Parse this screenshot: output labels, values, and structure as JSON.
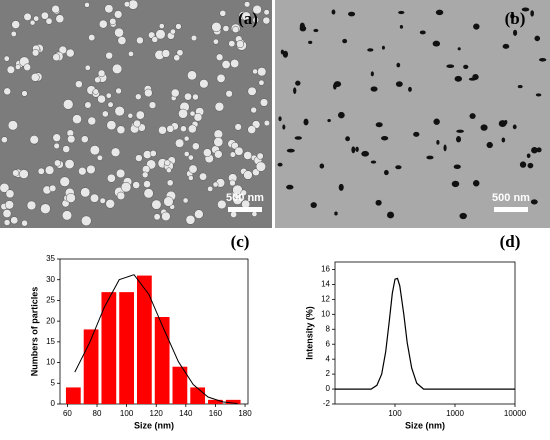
{
  "panels": [
    {
      "label": "(a)",
      "scale_bar": "500 nm"
    },
    {
      "label": "(b)",
      "scale_bar": "500 nm"
    },
    {
      "label": "(c)"
    },
    {
      "label": "(d)"
    }
  ],
  "chart_data": [
    {
      "type": "histogram",
      "x_label": "Size (nm)",
      "y_label": "Numbers of particles",
      "bins": [
        58,
        70,
        82,
        94,
        106,
        118,
        130,
        142,
        154,
        166,
        178
      ],
      "values": [
        4,
        18,
        27,
        27,
        31,
        21,
        9,
        4,
        1,
        1
      ],
      "color": "#ff0000",
      "fit": {
        "x": [
          65,
          75,
          85,
          95,
          105,
          115,
          125,
          135,
          145,
          155,
          165,
          175
        ],
        "values": [
          7.7,
          14.8,
          23.4,
          30.0,
          31.2,
          26.5,
          18.2,
          10.2,
          4.7,
          1.7,
          0.5,
          0.1
        ],
        "color": "#000000"
      },
      "xlim": [
        55,
        182
      ],
      "xticks": [
        60,
        80,
        100,
        120,
        140,
        160,
        180
      ],
      "ylim": [
        0,
        35
      ],
      "yticks": [
        0,
        5,
        10,
        15,
        20,
        25,
        30,
        35
      ]
    },
    {
      "type": "line",
      "x_scale": "log",
      "x_label": "Size (nm)",
      "y_label": "Intensity (%)",
      "x": [
        10,
        40,
        50,
        60,
        70,
        80,
        90,
        100,
        110,
        120,
        140,
        160,
        190,
        230,
        300,
        10000
      ],
      "values": [
        0,
        0,
        0.5,
        2,
        5,
        9,
        12.8,
        14.7,
        14.8,
        13.8,
        10,
        6.2,
        2.8,
        0.8,
        0,
        0
      ],
      "color": "#000000",
      "xlim": [
        10,
        10000
      ],
      "xticks": [
        100,
        1000,
        10000
      ],
      "ylim": [
        -2,
        17
      ],
      "yticks": [
        -2,
        0,
        2,
        4,
        6,
        8,
        10,
        12,
        14,
        16
      ]
    }
  ]
}
